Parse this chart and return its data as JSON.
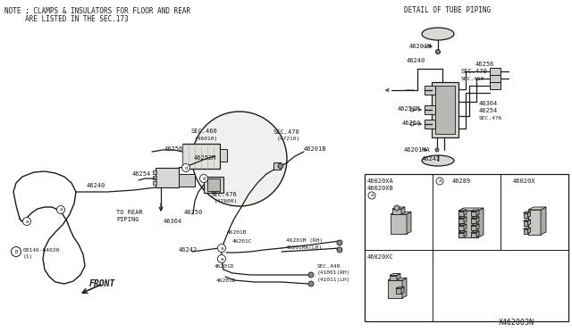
{
  "bg_color": "#ffffff",
  "line_color": "#1a1a1a",
  "diagram_id": "X462003N"
}
